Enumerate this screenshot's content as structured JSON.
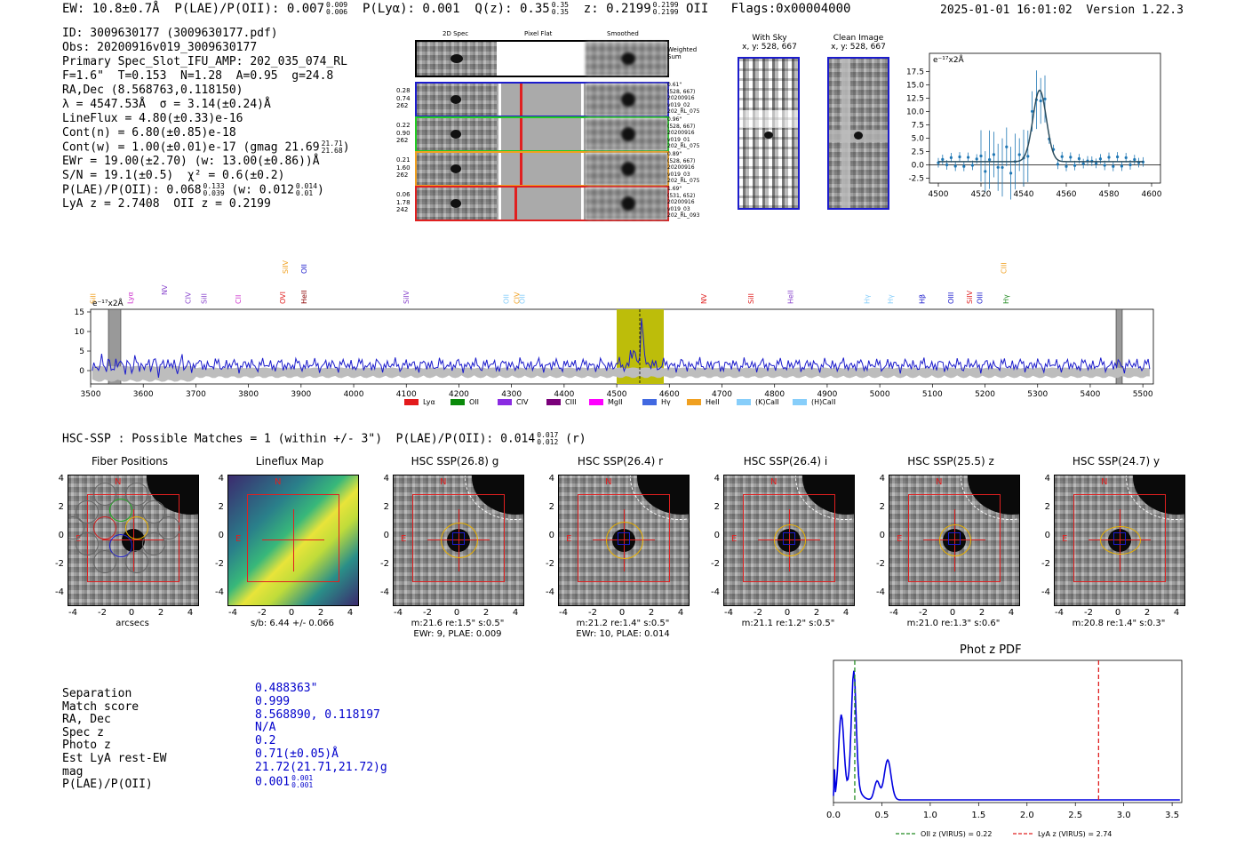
{
  "header": {
    "line": "EW: 10.8±0.7Å  P(LAE)/P(OII): 0.007",
    "plae_hi": "0.009",
    "plae_lo": "0.006",
    "plya": "  P(Lyα): 0.001  Q(z): 0.35",
    "qz_hi": "0.35",
    "qz_lo": "0.35",
    "z": "  z: 0.2199",
    "z_hi": "0.2199",
    "z_lo": "0.2199",
    "z_tail": " OII   Flags:0x00004000",
    "datetime": "2025-01-01 16:01:02",
    "version": "Version 1.22.3"
  },
  "info": {
    "id": "ID: 3009630177 (3009630177.pdf)",
    "obs": "Obs: 20200916v019_3009630177",
    "primary": "Primary Spec_Slot_IFU_AMP: 202_035_074_RL",
    "params": "F=1.6\"  T=0.153  N=1.28  A=0.95  g=24.8",
    "radec": "RA,Dec (8.568763,0.118150)",
    "lambda": "λ = 4547.53Å  σ = 3.14(±0.24)Å",
    "lineflux": "LineFlux = 4.80(±0.33)e-16",
    "contn": "Cont(n) = 6.80(±0.85)e-18",
    "contw": "Cont(w) = 1.00(±0.01)e-17 (gmag 21.69",
    "contw_hi": "21.71",
    "contw_lo": "21.68",
    "ewr": "EWr = 19.00(±2.70) (w: 13.00(±0.86))Å",
    "sn": "S/N = 19.1(±0.5)  χ² = 0.6(±0.2)",
    "plae": "P(LAE)/P(OII): 0.068",
    "plae_hi": "0.133",
    "plae_lo": "0.039",
    "plae_w": " (w: 0.012",
    "plae_w_hi": "0.014",
    "plae_w_lo": "0.01",
    "lyaz": "LyA z = 2.7408  OII z = 0.2199"
  },
  "spec2d": {
    "col_labels": [
      "2D Spec",
      "Pixel Flat",
      "Smoothed"
    ],
    "weighted": "Weighted Sum",
    "rows": [
      {
        "left": [
          "0.28",
          "0.74",
          "262"
        ],
        "right": [
          "0.61\"",
          "(528, 667)",
          "20200916",
          "v019_02",
          "202_RL_075"
        ],
        "color": "#1c1ccc"
      },
      {
        "left": [
          "0.22",
          "0.90",
          "262"
        ],
        "right": [
          "0.96\"",
          "(528, 667)",
          "20200916",
          "v019_01",
          "202_RL_075"
        ],
        "color": "#22cc22"
      },
      {
        "left": [
          "0.21",
          "1.60",
          "262"
        ],
        "right": [
          "0.89\"",
          "(528, 667)",
          "20200916",
          "v019_03",
          "202_RL_075"
        ],
        "color": "#f0a020"
      },
      {
        "left": [
          "0.06",
          "1.78",
          "242"
        ],
        "right": [
          "1.69\"",
          "(531, 652)",
          "20200916",
          "v019_03",
          "202_RL_093"
        ],
        "color": "#e02020"
      }
    ]
  },
  "sky": {
    "title": "With Sky",
    "coords": "x, y: 528, 667"
  },
  "clean": {
    "title": "Clean Image",
    "coords": "x, y: 528, 667"
  },
  "fit_plot": {
    "unit": "e⁻¹⁷x2Å",
    "yticks": [
      "17.5",
      "15.0",
      "12.5",
      "10.0",
      "7.5",
      "5.0",
      "2.5",
      "0.0",
      "-2.5"
    ],
    "xticks": [
      "4500",
      "4520",
      "4540",
      "4560",
      "4580",
      "4600"
    ]
  },
  "full_spec": {
    "unit": "e⁻¹⁷x2Å",
    "yticks": [
      "15",
      "10",
      "5",
      "0"
    ],
    "xticks": [
      "3500",
      "3600",
      "3700",
      "3800",
      "3900",
      "4000",
      "4100",
      "4200",
      "4300",
      "4400",
      "4500",
      "4600",
      "4700",
      "4800",
      "4900",
      "5000",
      "5100",
      "5200",
      "5300",
      "5400",
      "5500"
    ],
    "line_labels": [
      {
        "t": "SiII",
        "c": "#f0a020"
      },
      {
        "t": "Lyα",
        "c": "#cc33cc"
      },
      {
        "t": "NV",
        "c": "#8844cc"
      },
      {
        "t": "CIV",
        "c": "#8844cc"
      },
      {
        "t": "SiII",
        "c": "#8844cc"
      },
      {
        "t": "SiIV",
        "c": "#f0a020"
      },
      {
        "t": "CII",
        "c": "#cc33cc"
      },
      {
        "t": "OVI",
        "c": "#e02020"
      },
      {
        "t": "OII",
        "c": "#1c1ccc"
      },
      {
        "t": "HeII",
        "c": "#8b0000"
      },
      {
        "t": "SiIV",
        "c": "#8844cc"
      },
      {
        "t": "OII",
        "c": "#87cefa"
      },
      {
        "t": "CIV",
        "c": "#f0a020"
      },
      {
        "t": "OII",
        "c": "#87cefa"
      },
      {
        "t": "NV",
        "c": "#e02020"
      },
      {
        "t": "SiII",
        "c": "#e02020"
      },
      {
        "t": "HeII",
        "c": "#8844cc"
      },
      {
        "t": "Hγ",
        "c": "#87cefa"
      },
      {
        "t": "Hγ",
        "c": "#87cefa"
      },
      {
        "t": "Hβ",
        "c": "#1c1ccc"
      },
      {
        "t": "OIII",
        "c": "#1c1ccc"
      },
      {
        "t": "SiIV",
        "c": "#e02020"
      },
      {
        "t": "OIII",
        "c": "#1c1ccc"
      },
      {
        "t": "CIII",
        "c": "#f0a020"
      },
      {
        "t": "Hγ",
        "c": "#228b22"
      }
    ],
    "legend": [
      {
        "t": "Lyα",
        "c": "#e31a1c"
      },
      {
        "t": "OII",
        "c": "#0a8a0a"
      },
      {
        "t": "CIV",
        "c": "#8a2be2"
      },
      {
        "t": "CIII",
        "c": "#7a007a"
      },
      {
        "t": "MgII",
        "c": "#ff00ff"
      },
      {
        "t": "Hγ",
        "c": "#4169e1"
      },
      {
        "t": "HeII",
        "c": "#f0a020"
      },
      {
        "t": "(K)CaII",
        "c": "#87cefa"
      },
      {
        "t": "(H)CaII",
        "c": "#87cefa"
      }
    ]
  },
  "hsc": {
    "title": "HSC-SSP : Possible Matches = 1 (within +/- 3\")  P(LAE)/P(OII): 0.014",
    "hi": "0.017",
    "lo": "0.012",
    "tail": " (r)"
  },
  "cutouts": [
    {
      "title": "Fiber Positions",
      "cap1": "arcsecs",
      "cap2": ""
    },
    {
      "title": "Lineflux Map",
      "cap1": "s/b: 6.44 +/- 0.066",
      "cap2": ""
    },
    {
      "title": "HSC SSP(26.8) g",
      "cap1": "m:21.6  re:1.5\"  s:0.5\"",
      "cap2": "EWr: 9, PLAE: 0.009"
    },
    {
      "title": "HSC SSP(26.4) r",
      "cap1": "m:21.2  re:1.4\"  s:0.5\"",
      "cap2": "EWr: 10, PLAE: 0.014"
    },
    {
      "title": "HSC SSP(26.4) i",
      "cap1": "m:21.1  re:1.2\"  s:0.5\"",
      "cap2": ""
    },
    {
      "title": "HSC SSP(25.5) z",
      "cap1": "m:21.0  re:1.3\"  s:0.6\"",
      "cap2": ""
    },
    {
      "title": "HSC SSP(24.7) y",
      "cap1": "m:20.8  re:1.4\"  s:0.3\"",
      "cap2": ""
    }
  ],
  "cutout_ticks": {
    "y": [
      "4",
      "2",
      "0",
      "-2",
      "-4"
    ],
    "x": [
      "-4",
      "-2",
      "0",
      "2",
      "4"
    ],
    "north": "N",
    "east": "E"
  },
  "separation": {
    "labels": [
      "Separation",
      "Match score",
      "RA, Dec",
      "Spec z",
      "Photo z",
      "Est LyA rest-EW",
      "mag",
      "P(LAE)/P(OII)"
    ],
    "values": [
      "0.488363\"",
      "0.999",
      "8.568890, 0.118197",
      "N/A",
      "0.2",
      "0.71(±0.05)Å",
      "21.72(21.71,21.72)g",
      "0.001"
    ],
    "plae_hi": "0.001",
    "plae_lo": "0.001"
  },
  "photoz": {
    "title": "Phot z PDF",
    "xticks": [
      "0.0",
      "0.5",
      "1.0",
      "1.5",
      "2.0",
      "2.5",
      "3.0",
      "3.5"
    ],
    "legend_oii": "OII z (VIRUS) = 0.22",
    "legend_lya": "LyA z (VIRUS) = 2.74",
    "oii_z": 0.22,
    "lya_z": 2.74
  }
}
